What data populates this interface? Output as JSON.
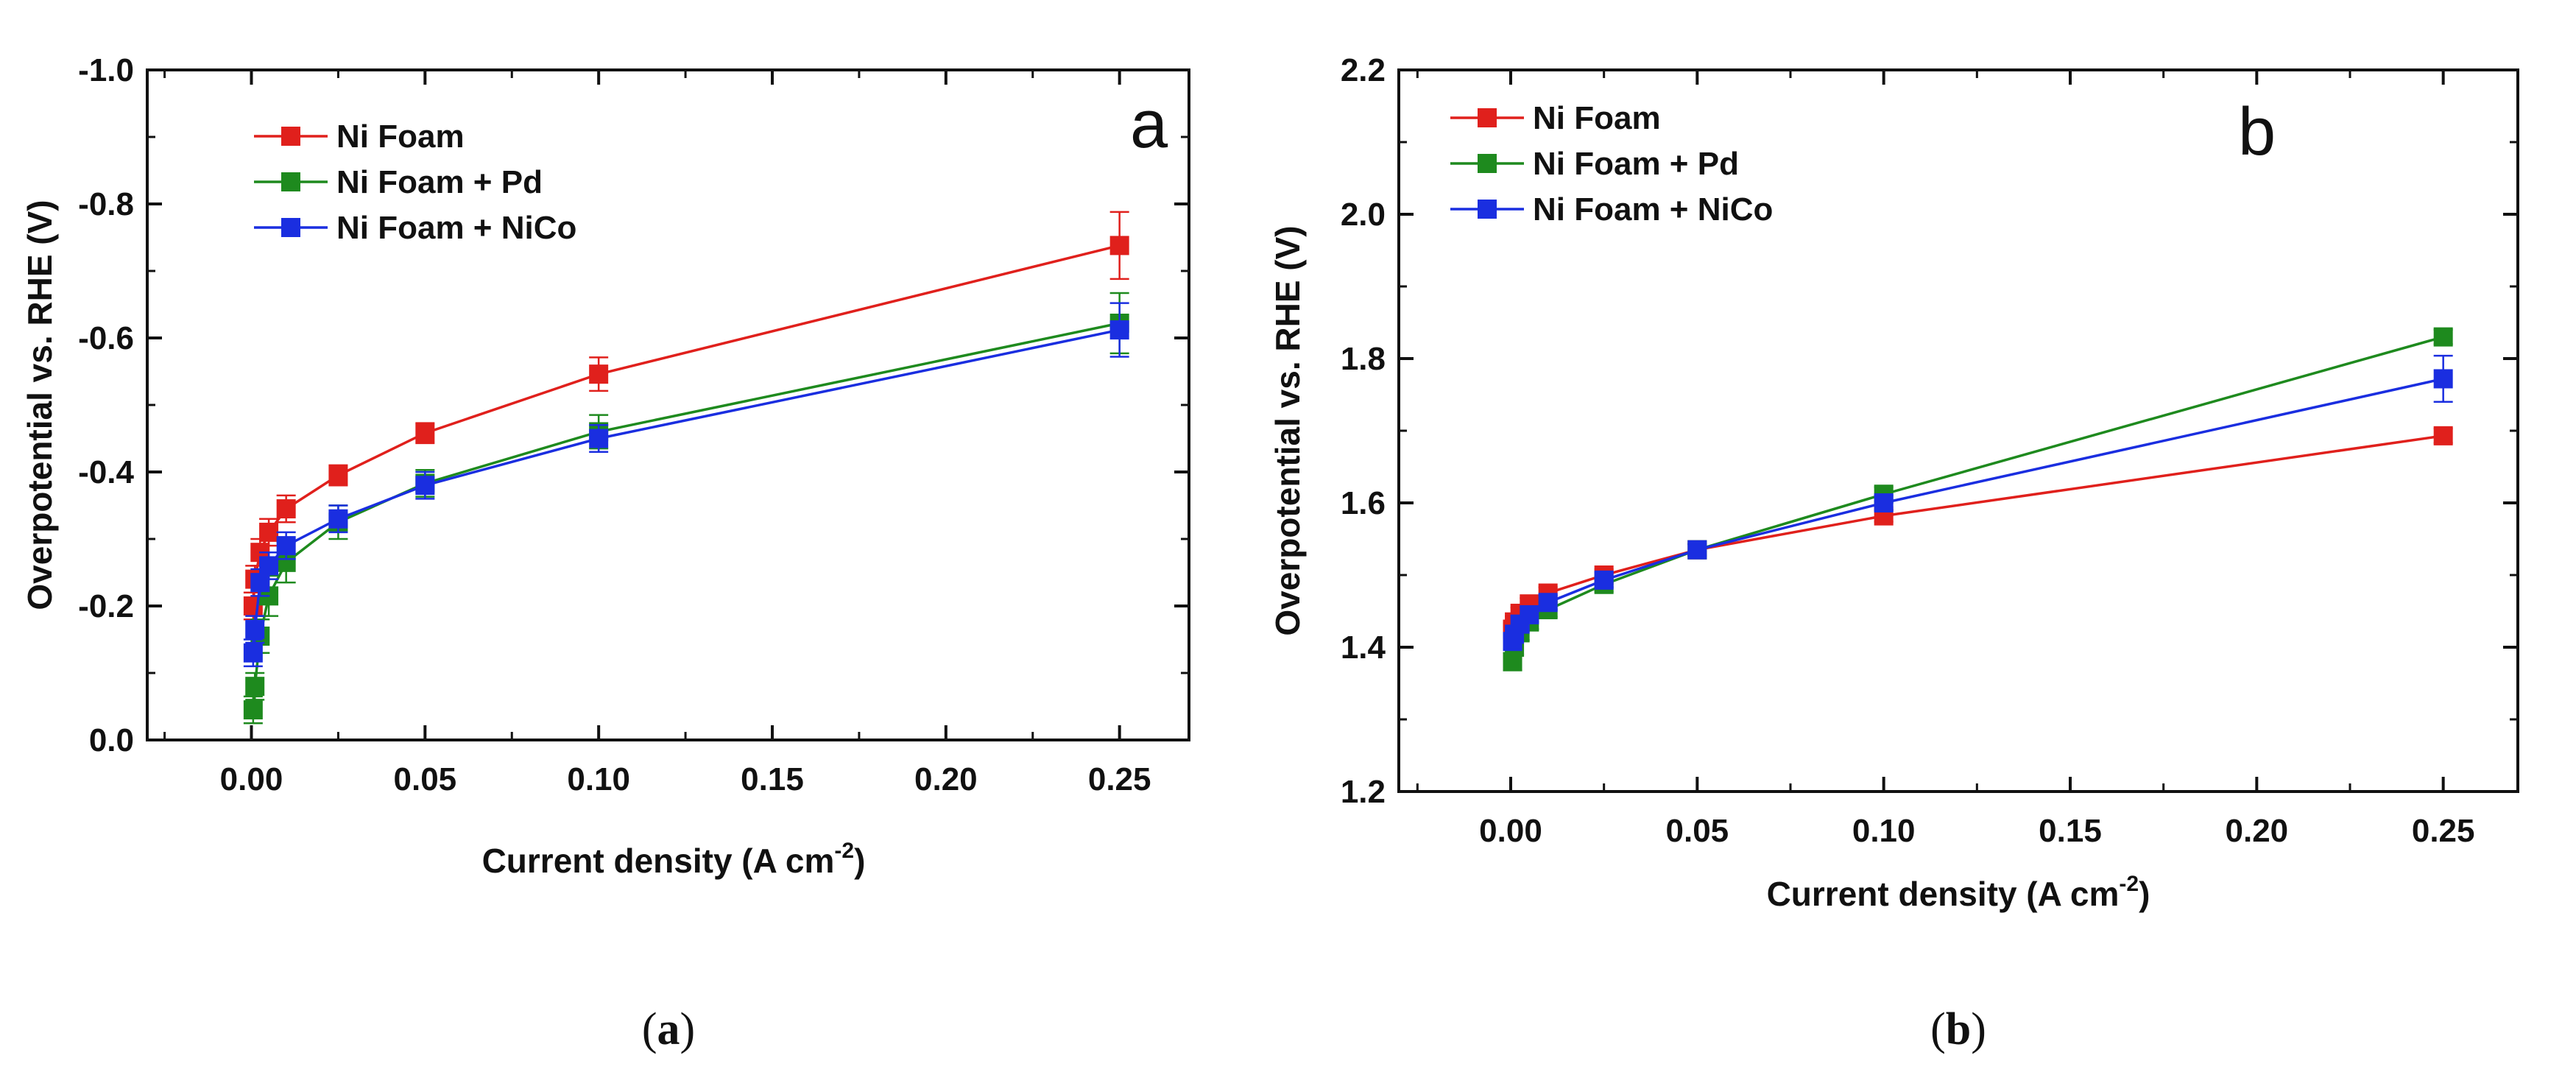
{
  "chart_data": [
    {
      "type": "line",
      "panel_letter": "a",
      "caption": "(a)",
      "caption_inner": "a",
      "xlabel": "Current density (A cm",
      "xlabel_sup": "-2",
      "xlabel_close": ")",
      "ylabel": "Overpotential vs. RHE (V)",
      "xlim": [
        -0.03,
        0.27
      ],
      "ylim": [
        0.0,
        -1.0
      ],
      "y_inverted": true,
      "xticks": [
        0.0,
        0.05,
        0.1,
        0.15,
        0.2,
        0.25
      ],
      "xtick_labels": [
        "0.00",
        "0.05",
        "0.10",
        "0.15",
        "0.20",
        "0.25"
      ],
      "yticks": [
        0.0,
        -0.2,
        -0.4,
        -0.6,
        -0.8,
        -1.0
      ],
      "ytick_labels": [
        "0.0",
        "-0.2",
        "-0.4",
        "-0.6",
        "-0.8",
        "-1.0"
      ],
      "legend_position": "top-left",
      "series": [
        {
          "name": "Ni Foam",
          "color": "#e0201c",
          "x": [
            0.0005,
            0.001,
            0.0025,
            0.005,
            0.01,
            0.025,
            0.05,
            0.1,
            0.25
          ],
          "y": [
            -0.2,
            -0.24,
            -0.28,
            -0.31,
            -0.345,
            -0.395,
            -0.458,
            -0.546,
            -0.738
          ],
          "err": [
            0.02,
            0.02,
            0.02,
            0.02,
            0.02,
            0.015,
            0.015,
            0.025,
            0.05
          ]
        },
        {
          "name": "Ni Foam + Pd",
          "color": "#1e8a1e",
          "x": [
            0.0005,
            0.001,
            0.0025,
            0.005,
            0.01,
            0.025,
            0.05,
            0.1,
            0.25
          ],
          "y": [
            -0.045,
            -0.08,
            -0.155,
            -0.215,
            -0.265,
            -0.325,
            -0.383,
            -0.46,
            -0.622
          ],
          "err": [
            0.02,
            0.02,
            0.025,
            0.03,
            0.03,
            0.025,
            0.02,
            0.025,
            0.045
          ]
        },
        {
          "name": "Ni Foam + NiCo",
          "color": "#1a2ee0",
          "x": [
            0.0005,
            0.001,
            0.0025,
            0.005,
            0.01,
            0.025,
            0.05,
            0.1,
            0.25
          ],
          "y": [
            -0.13,
            -0.165,
            -0.235,
            -0.26,
            -0.29,
            -0.33,
            -0.38,
            -0.45,
            -0.612
          ],
          "err": [
            0.02,
            0.02,
            0.02,
            0.02,
            0.02,
            0.02,
            0.02,
            0.02,
            0.04
          ]
        }
      ]
    },
    {
      "type": "line",
      "panel_letter": "b",
      "caption": "(b)",
      "caption_inner": "b",
      "xlabel": "Current density (A cm",
      "xlabel_sup": "-2",
      "xlabel_close": ")",
      "ylabel": "Overpotential vs. RHE (V)",
      "xlim": [
        -0.03,
        0.27
      ],
      "ylim": [
        1.2,
        2.2
      ],
      "y_inverted": false,
      "xticks": [
        0.0,
        0.05,
        0.1,
        0.15,
        0.2,
        0.25
      ],
      "xtick_labels": [
        "0.00",
        "0.05",
        "0.10",
        "0.15",
        "0.20",
        "0.25"
      ],
      "yticks": [
        1.2,
        1.4,
        1.6,
        1.8,
        2.0,
        2.2
      ],
      "ytick_labels": [
        "1.2",
        "1.4",
        "1.6",
        "1.8",
        "2.0",
        "2.2"
      ],
      "legend_position": "top-left",
      "series": [
        {
          "name": "Ni Foam",
          "color": "#e0201c",
          "x": [
            0.0005,
            0.001,
            0.0025,
            0.005,
            0.01,
            0.025,
            0.05,
            0.1,
            0.25
          ],
          "y": [
            1.425,
            1.435,
            1.447,
            1.46,
            1.475,
            1.5,
            1.535,
            1.582,
            1.693
          ],
          "err": [
            0.008,
            0.008,
            0.008,
            0.008,
            0.008,
            0.008,
            0.008,
            0.008,
            0.01
          ]
        },
        {
          "name": "Ni Foam + Pd",
          "color": "#1e8a1e",
          "x": [
            0.0005,
            0.001,
            0.0025,
            0.005,
            0.01,
            0.025,
            0.05,
            0.1,
            0.25
          ],
          "y": [
            1.38,
            1.4,
            1.42,
            1.435,
            1.452,
            1.487,
            1.535,
            1.612,
            1.83
          ],
          "err": [
            0.012,
            0.01,
            0.01,
            0.01,
            0.01,
            0.01,
            0.008,
            0.01,
            0.01
          ]
        },
        {
          "name": "Ni Foam + NiCo",
          "color": "#1a2ee0",
          "x": [
            0.0005,
            0.001,
            0.0025,
            0.005,
            0.01,
            0.025,
            0.05,
            0.1,
            0.25
          ],
          "y": [
            1.408,
            1.418,
            1.432,
            1.445,
            1.462,
            1.493,
            1.535,
            1.6,
            1.772
          ],
          "err": [
            0.01,
            0.01,
            0.01,
            0.01,
            0.01,
            0.01,
            0.008,
            0.01,
            0.032
          ]
        }
      ]
    }
  ]
}
